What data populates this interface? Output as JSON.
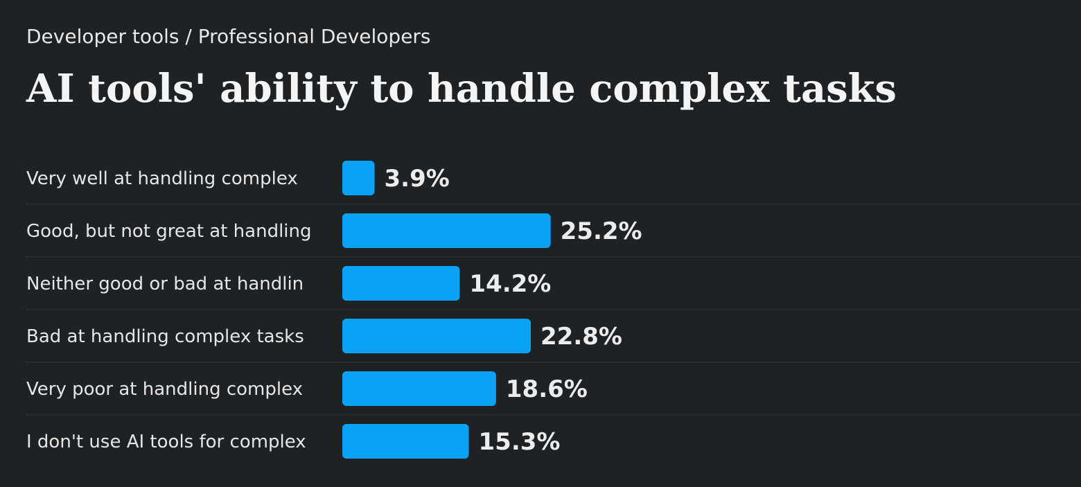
{
  "breadcrumb": "Developer tools / Professional Developers",
  "title": "AI tools' ability to handle complex tasks",
  "colors": {
    "background": "#1f2225",
    "bar": "#0aa2f5",
    "text": "#e6e6e6"
  },
  "chart_data": {
    "type": "bar",
    "orientation": "horizontal",
    "title": "AI tools' ability to handle complex tasks",
    "categories": [
      "Very well at handling complex",
      "Good, but not great at handling",
      "Neither good or bad at handlin",
      "Bad at handling complex tasks",
      "Very poor at handling complex",
      "I don't use AI tools for complex"
    ],
    "values": [
      3.9,
      25.2,
      14.2,
      22.8,
      18.6,
      15.3
    ],
    "value_labels": [
      "3.9%",
      "25.2%",
      "14.2%",
      "22.8%",
      "18.6%",
      "15.3%"
    ],
    "unit": "%",
    "xlim": [
      0,
      100
    ],
    "grid": false,
    "legend": "none"
  }
}
